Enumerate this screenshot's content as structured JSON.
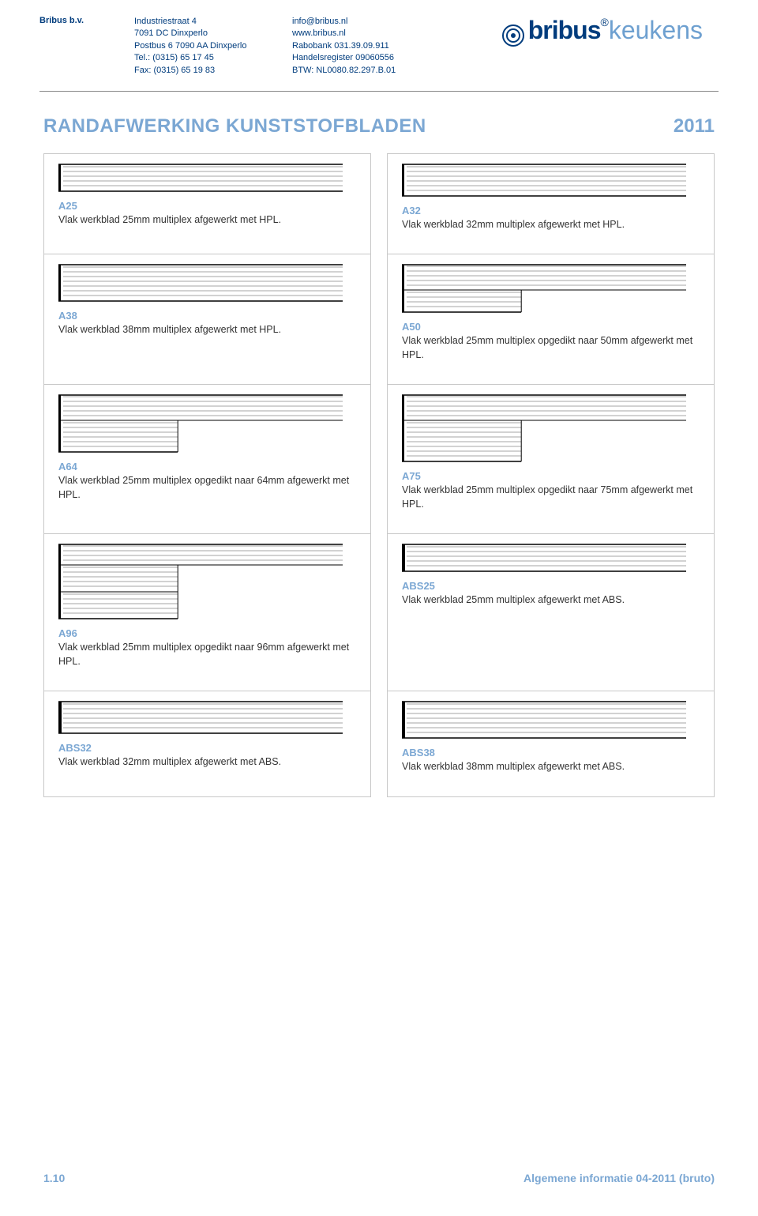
{
  "header": {
    "company": "Bribus b.v.",
    "addr": {
      "l1": "Industriestraat 4",
      "l2": "7091 DC Dinxperlo",
      "l3": "Postbus 6 7090 AA Dinxperlo",
      "l4": "Tel.: (0315) 65 17 45",
      "l5": "Fax: (0315) 65 19 83"
    },
    "contact": {
      "l1": "info@bribus.nl",
      "l2": "www.bribus.nl",
      "l3": "Rabobank 031.39.09.911",
      "l4": "Handelsregister 09060556",
      "l5": "BTW: NL0080.82.297.B.01"
    },
    "logo_b1": "bribus",
    "logo_b2": "keukens"
  },
  "title": "RANDAFWERKING KUNSTSTOFBLADEN",
  "year": "2011",
  "profiles": [
    {
      "code": "A25",
      "desc": "Vlak werkblad 25mm multiplex afgewerkt met HPL.",
      "shape": "flat",
      "lines": 5,
      "top_lines": 5,
      "bottom_lines": 0
    },
    {
      "code": "A32",
      "desc": "Vlak werkblad 32mm multiplex afgewerkt met HPL.",
      "shape": "flat",
      "lines": 6,
      "top_lines": 6,
      "bottom_lines": 0
    },
    {
      "code": "A38",
      "desc": "Vlak werkblad 38mm multiplex afgewerkt met HPL.",
      "shape": "flat",
      "lines": 7,
      "top_lines": 7,
      "bottom_lines": 0
    },
    {
      "code": "A50",
      "desc": "Vlak werkblad 25mm multiplex opgedikt naar 50mm afgewerkt met HPL.",
      "shape": "step",
      "top_lines": 5,
      "bottom_lines": 4
    },
    {
      "code": "A64",
      "desc": "Vlak werkblad 25mm multiplex opgedikt naar 64mm afgewerkt met HPL.",
      "shape": "step",
      "top_lines": 5,
      "bottom_lines": 6
    },
    {
      "code": "A75",
      "desc": "Vlak werkblad 25mm multiplex opgedikt naar 75mm afgewerkt met HPL.",
      "shape": "step",
      "top_lines": 5,
      "bottom_lines": 8
    },
    {
      "code": "A96",
      "desc": "Vlak werkblad 25mm multiplex opgedikt naar 96mm afgewerkt met HPL.",
      "shape": "stepx",
      "top_lines": 4,
      "mid_lines": 5,
      "bottom_lines": 5
    },
    {
      "code": "ABS25",
      "desc": "Vlak werkblad 25mm multiplex afgewerkt met ABS.",
      "shape": "flatabs",
      "lines": 5
    },
    {
      "code": "ABS32",
      "desc": "Vlak werkblad 32mm multiplex afgewerkt met ABS.",
      "shape": "flatabs",
      "lines": 6
    },
    {
      "code": "ABS38",
      "desc": "Vlak werkblad 38mm multiplex afgewerkt met ABS.",
      "shape": "flatabs",
      "lines": 7
    }
  ],
  "colors": {
    "light_blue": "#7ba7d3",
    "dark_blue": "#003c7d",
    "line": "#b8b8b8",
    "edge": "#000000"
  },
  "footer": {
    "page": "1.10",
    "right": "Algemene informatie 04-2011 (bruto)"
  }
}
